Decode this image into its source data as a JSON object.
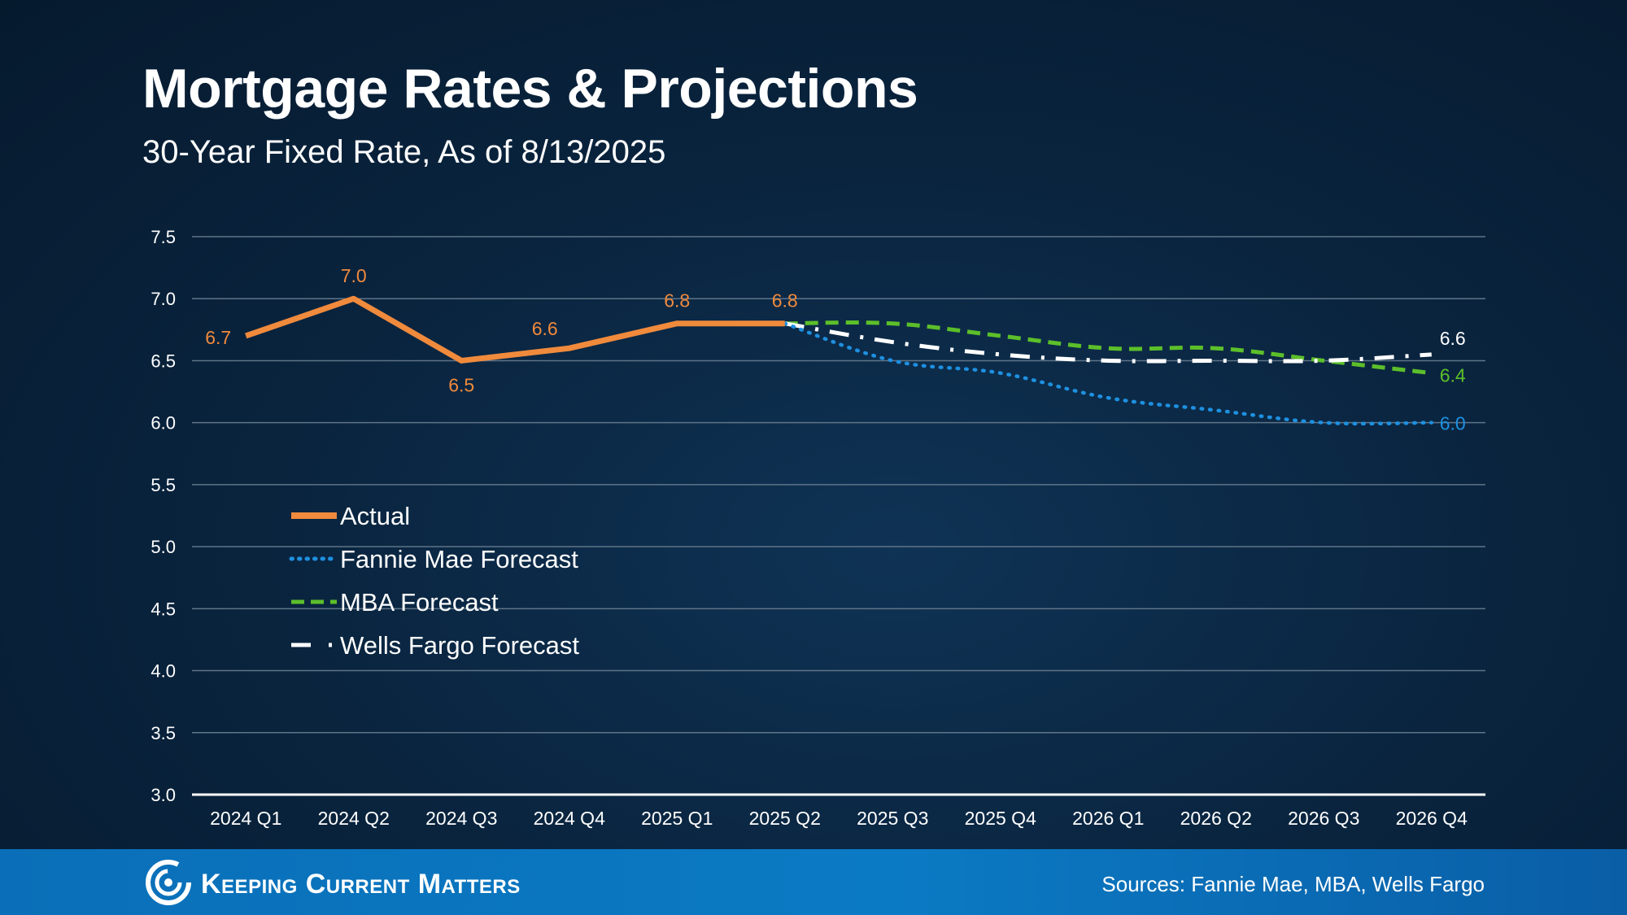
{
  "header": {
    "title": "Mortgage Rates & Projections",
    "subtitle": "30-Year Fixed Rate, As of 8/13/2025"
  },
  "footer": {
    "brand": "Keeping Current Matters",
    "sources": "Sources: Fannie Mae, MBA, Wells Fargo",
    "logo_icon": "swirl-logo-icon",
    "background": "#0b78c2"
  },
  "chart_data": {
    "type": "line",
    "categories": [
      "2024 Q1",
      "2024 Q2",
      "2024 Q3",
      "2024 Q4",
      "2025 Q1",
      "2025 Q2",
      "2025 Q3",
      "2025 Q4",
      "2026 Q1",
      "2026 Q2",
      "2026 Q3",
      "2026 Q4"
    ],
    "ylim": [
      3.0,
      7.5
    ],
    "yticks": [
      "3.0",
      "3.5",
      "4.0",
      "4.5",
      "5.0",
      "5.5",
      "6.0",
      "6.5",
      "7.0",
      "7.5"
    ],
    "grid": true,
    "legend_position": "center-left",
    "series": [
      {
        "name": "Actual",
        "color": "#f08a3c",
        "style": "solid",
        "values": [
          6.7,
          7.0,
          6.5,
          6.6,
          6.8,
          6.8,
          null,
          null,
          null,
          null,
          null,
          null
        ],
        "labels": [
          "6.7",
          "7.0",
          "6.5",
          "6.6",
          "6.8",
          "6.8",
          "",
          "",
          "",
          "",
          "",
          ""
        ]
      },
      {
        "name": "Fannie Mae Forecast",
        "color": "#1e90e0",
        "style": "dotted",
        "values": [
          null,
          null,
          null,
          null,
          null,
          6.8,
          6.5,
          6.4,
          6.2,
          6.1,
          6.0,
          6.0
        ],
        "labels": [
          "",
          "",
          "",
          "",
          "",
          "",
          "",
          "",
          "",
          "",
          "",
          "6.0"
        ]
      },
      {
        "name": "MBA Forecast",
        "color": "#5cbf2a",
        "style": "dashed",
        "values": [
          null,
          null,
          null,
          null,
          null,
          6.8,
          6.8,
          6.7,
          6.6,
          6.6,
          6.5,
          6.4
        ],
        "labels": [
          "",
          "",
          "",
          "",
          "",
          "",
          "",
          "",
          "",
          "",
          "",
          "6.4"
        ]
      },
      {
        "name": "Wells Fargo Forecast",
        "color": "#ffffff",
        "style": "dashdot",
        "values": [
          null,
          null,
          null,
          null,
          null,
          6.8,
          6.65,
          6.55,
          6.5,
          6.5,
          6.5,
          6.55
        ],
        "labels": [
          "",
          "",
          "",
          "",
          "",
          "",
          "",
          "",
          "",
          "",
          "",
          "6.6"
        ]
      }
    ]
  }
}
